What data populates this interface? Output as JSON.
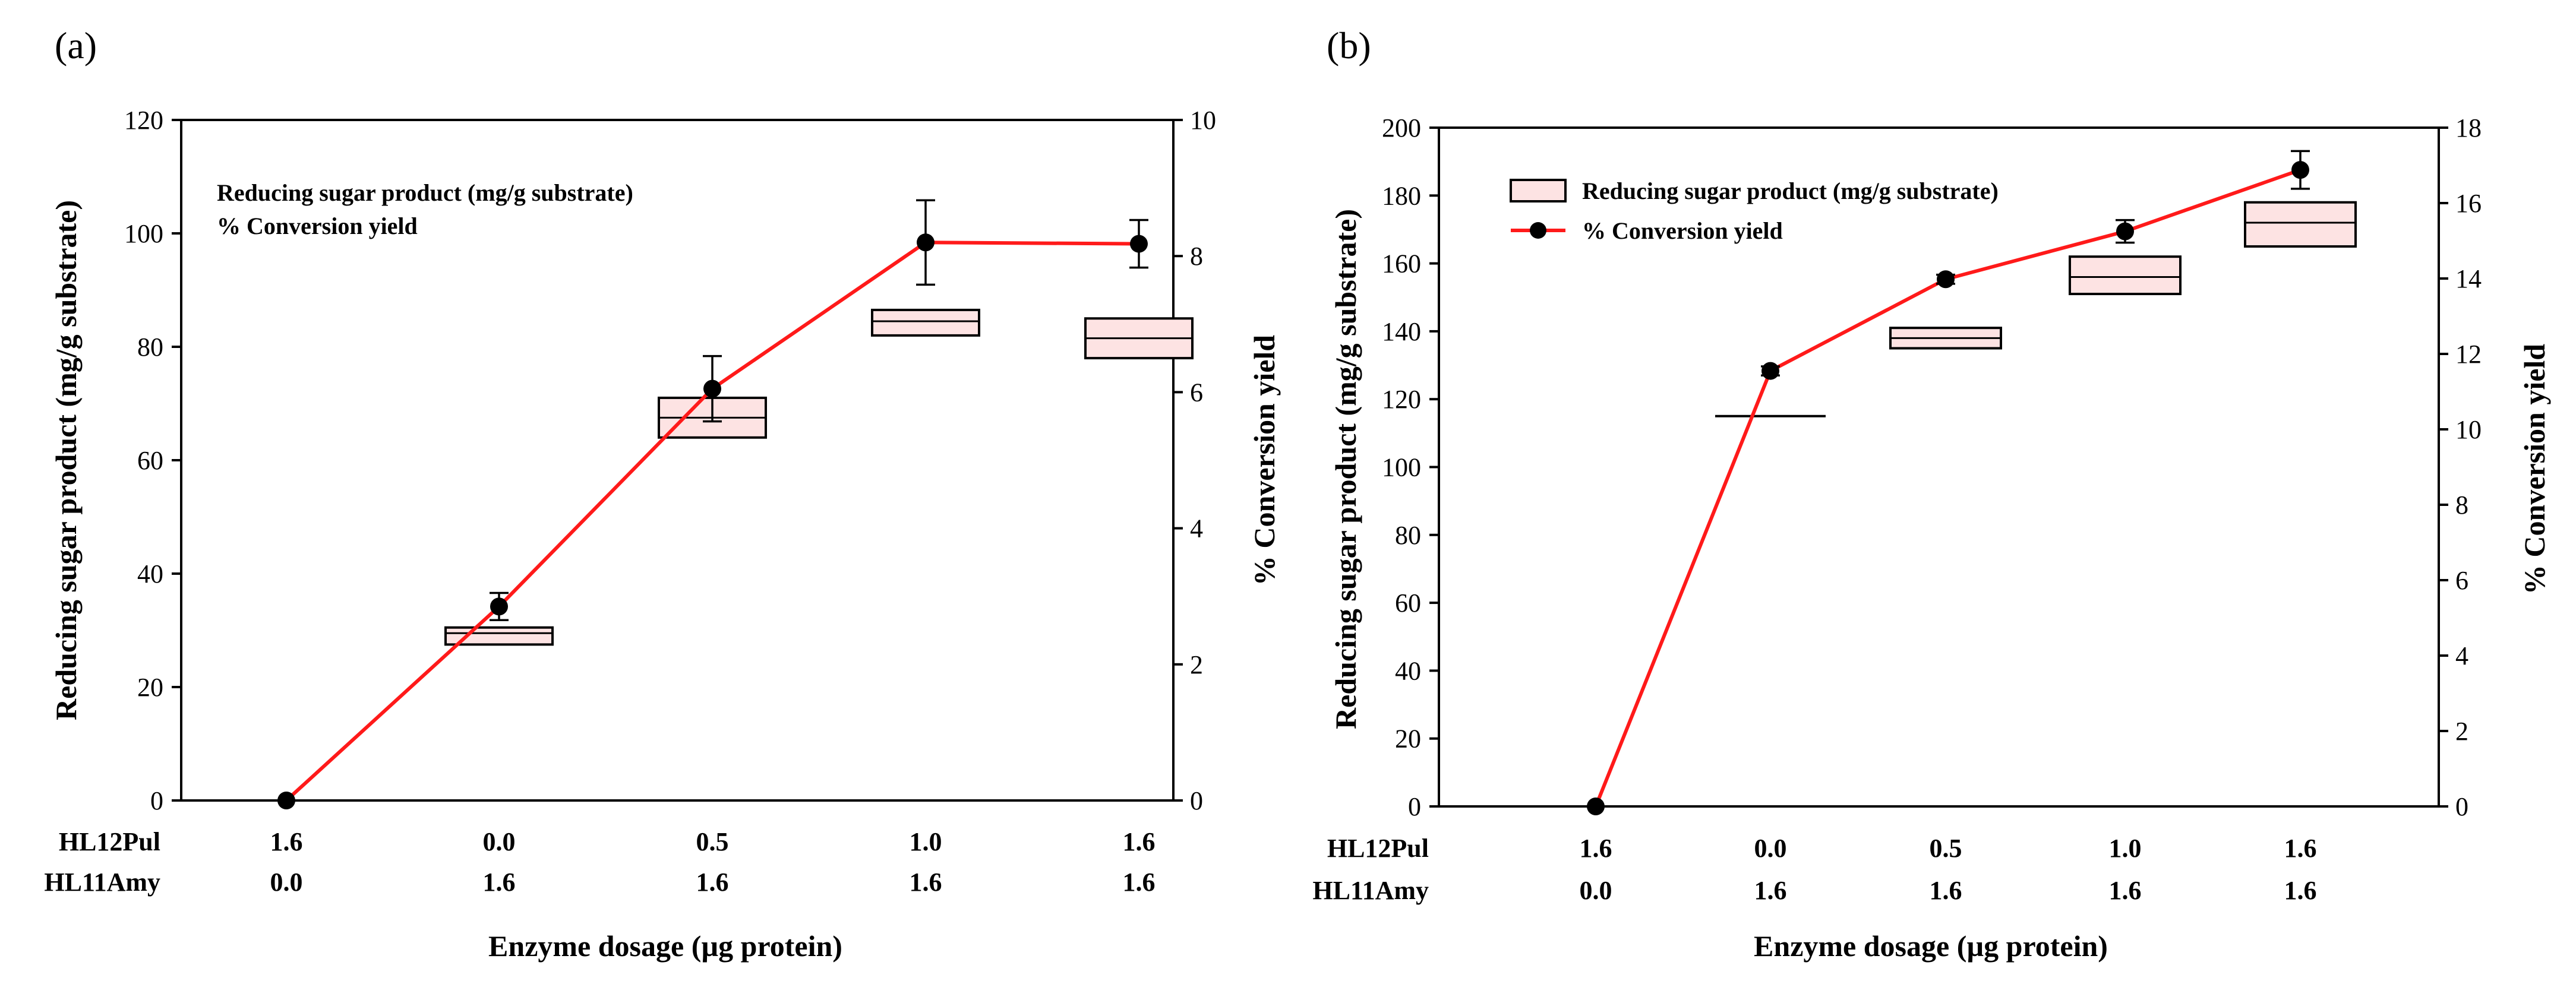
{
  "chart_data": [
    {
      "panel_label": "(a)",
      "type": "box+line",
      "ylabel": "Reducing sugar product (mg/g substrate)",
      "y2label": "% Conversion yield",
      "xlabel": "Enzyme dosage (µg protein)",
      "ylim": [
        0,
        120
      ],
      "yticks": [
        "0",
        "20",
        "40",
        "60",
        "80",
        "100",
        "120"
      ],
      "y2lim": [
        0,
        10
      ],
      "y2ticks": [
        "0",
        "2",
        "4",
        "6",
        "8",
        "10"
      ],
      "row_labels": [
        "HL12Pul",
        "HL11Amy"
      ],
      "categories": [
        {
          "HL12Pul": "1.6",
          "HL11Amy": "0.0"
        },
        {
          "HL12Pul": "0.0",
          "HL11Amy": "1.6"
        },
        {
          "HL12Pul": "0.5",
          "HL11Amy": "1.6"
        },
        {
          "HL12Pul": "1.0",
          "HL11Amy": "1.6"
        },
        {
          "HL12Pul": "1.6",
          "HL11Amy": "1.6"
        }
      ],
      "legend": [
        "Reducing sugar product (mg/g substrate)",
        "% Conversion yield"
      ],
      "legend_symbols": false,
      "boxes": [
        null,
        {
          "low": 27.5,
          "median": 29.5,
          "high": 30.5
        },
        {
          "low": 64,
          "median": 67.5,
          "high": 71
        },
        {
          "low": 82,
          "median": 84.5,
          "high": 86.5
        },
        {
          "low": 78,
          "median": 81.5,
          "high": 85
        }
      ],
      "conversion_yield": [
        {
          "value": 0,
          "err": 0
        },
        {
          "value": 2.85,
          "err": 0.2
        },
        {
          "value": 6.05,
          "err": 0.48
        },
        {
          "value": 8.2,
          "err": 0.62
        },
        {
          "value": 8.18,
          "err": 0.35
        }
      ]
    },
    {
      "panel_label": "(b)",
      "type": "box+line",
      "ylabel": "Reducing sugar product (mg/g substrate)",
      "y2label": "% Conversion yield",
      "xlabel": "Enzyme dosage (µg protein)",
      "ylim": [
        0,
        200
      ],
      "yticks": [
        "0",
        "20",
        "40",
        "60",
        "80",
        "100",
        "120",
        "140",
        "160",
        "180",
        "200"
      ],
      "y2lim": [
        0,
        18
      ],
      "y2ticks": [
        "0",
        "2",
        "4",
        "6",
        "8",
        "10",
        "12",
        "14",
        "16",
        "18"
      ],
      "row_labels": [
        "HL12Pul",
        "HL11Amy"
      ],
      "categories": [
        {
          "HL12Pul": "1.6",
          "HL11Amy": "0.0"
        },
        {
          "HL12Pul": "0.0",
          "HL11Amy": "1.6"
        },
        {
          "HL12Pul": "0.5",
          "HL11Amy": "1.6"
        },
        {
          "HL12Pul": "1.0",
          "HL11Amy": "1.6"
        },
        {
          "HL12Pul": "1.6",
          "HL11Amy": "1.6"
        }
      ],
      "legend": [
        "Reducing sugar product (mg/g substrate)",
        "% Conversion yield"
      ],
      "legend_symbols": true,
      "boxes": [
        null,
        {
          "low": 115,
          "median": 115,
          "high": 115
        },
        {
          "low": 135,
          "median": 138,
          "high": 141
        },
        {
          "low": 151,
          "median": 156,
          "high": 162
        },
        {
          "low": 165,
          "median": 172,
          "high": 178
        }
      ],
      "conversion_yield": [
        {
          "value": 0,
          "err": 0
        },
        {
          "value": 11.55,
          "err": 0.12
        },
        {
          "value": 13.98,
          "err": 0.12
        },
        {
          "value": 15.25,
          "err": 0.3
        },
        {
          "value": 16.88,
          "err": 0.5
        }
      ]
    }
  ]
}
